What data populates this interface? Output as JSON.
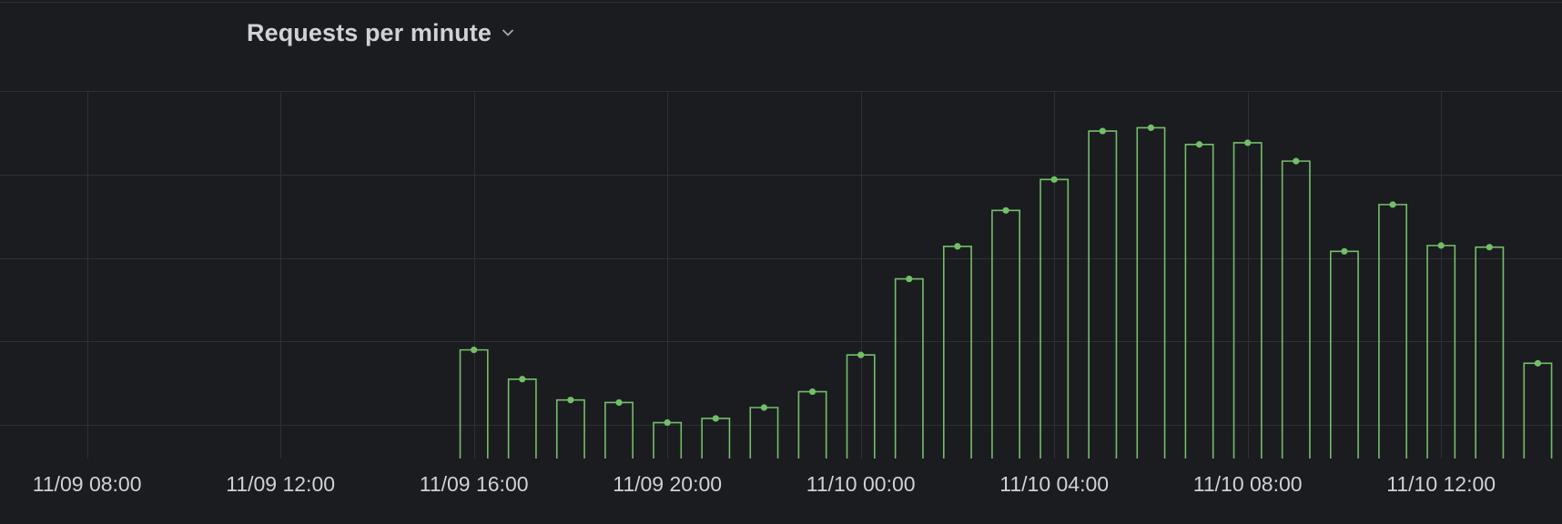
{
  "panel": {
    "title": "Requests per minute"
  },
  "colors": {
    "background": "#1b1c20",
    "grid": "#2e3035",
    "series": "#73bf69",
    "text": "#cfd1d6"
  },
  "icons": {
    "title_dropdown": "chevron-down-icon"
  },
  "chart_data": {
    "type": "bar",
    "title": "Requests per minute",
    "xlabel": "",
    "ylabel": "",
    "grid": true,
    "legend": "none",
    "x_tick_labels": [
      "11/09 08:00",
      "11/09 12:00",
      "11/09 16:00",
      "11/09 20:00",
      "11/10 00:00",
      "11/10 04:00",
      "11/10 08:00",
      "11/10 12:00"
    ],
    "x_tick_hours": [
      0,
      4,
      8,
      12,
      16,
      20,
      24,
      28
    ],
    "xlim_hours": [
      -1.8,
      30.5
    ],
    "ylim": [
      -0.4,
      4.0
    ],
    "y_grid_values": [
      0,
      1,
      2,
      3,
      4
    ],
    "x_hours": [
      8,
      9,
      10,
      11,
      12,
      13,
      14,
      15,
      16,
      17,
      18,
      19,
      20,
      21,
      22,
      23,
      24,
      25,
      26,
      27,
      28,
      29,
      30
    ],
    "values": [
      0.9,
      0.55,
      0.3,
      0.27,
      0.03,
      0.08,
      0.21,
      0.4,
      0.84,
      1.75,
      2.14,
      2.57,
      2.94,
      3.52,
      3.56,
      3.36,
      3.38,
      3.16,
      2.08,
      2.64,
      2.15,
      2.13,
      0.74
    ]
  }
}
